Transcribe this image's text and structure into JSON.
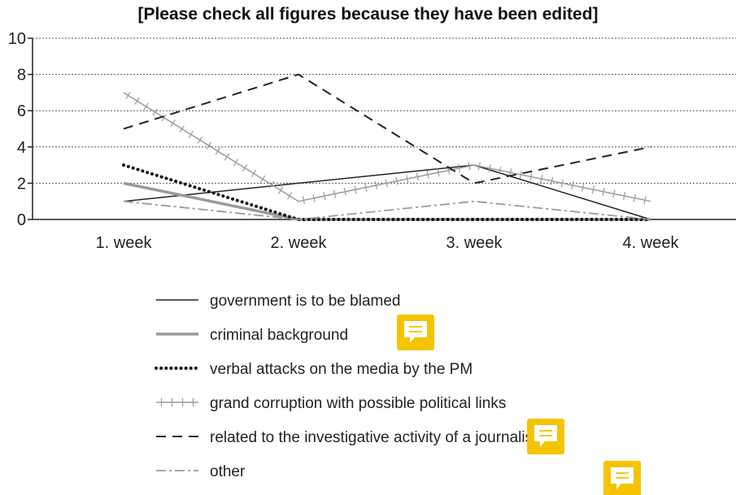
{
  "chart_data": {
    "type": "line",
    "title": "[Please check all figures because they have been edited]",
    "categories": [
      "1. week",
      "2. week",
      "3. week",
      "4. week"
    ],
    "ylim": [
      0,
      10
    ],
    "yticks": [
      "0",
      "2",
      "4",
      "6",
      "8",
      "10"
    ],
    "grid": "horizontal dotted",
    "legend_position": "bottom",
    "series": [
      {
        "name": "government is to be blamed",
        "values": [
          1,
          2,
          3,
          0
        ],
        "color": "#222222",
        "style": "solid-thin"
      },
      {
        "name": "criminal background",
        "values": [
          2,
          0,
          0,
          0
        ],
        "color": "#9a9a9a",
        "style": "solid-thick"
      },
      {
        "name": "verbal attacks on the media by the PM",
        "values": [
          3,
          0,
          0,
          0
        ],
        "color": "#111111",
        "style": "dotted"
      },
      {
        "name": "grand corruption with possible political links",
        "values": [
          7,
          1,
          3,
          1
        ],
        "color": "#9a9a9a",
        "style": "crossed"
      },
      {
        "name": "related to the investigative activity of a journalist",
        "values": [
          5,
          8,
          2,
          4
        ],
        "color": "#222222",
        "style": "dashed"
      },
      {
        "name": "other",
        "values": [
          1,
          0,
          1,
          0
        ],
        "color": "#9a9a9a",
        "style": "dashdot"
      }
    ]
  },
  "comment_icons": [
    "comment-icon",
    "comment-icon",
    "comment-icon"
  ],
  "comment_color": "#f5c400"
}
